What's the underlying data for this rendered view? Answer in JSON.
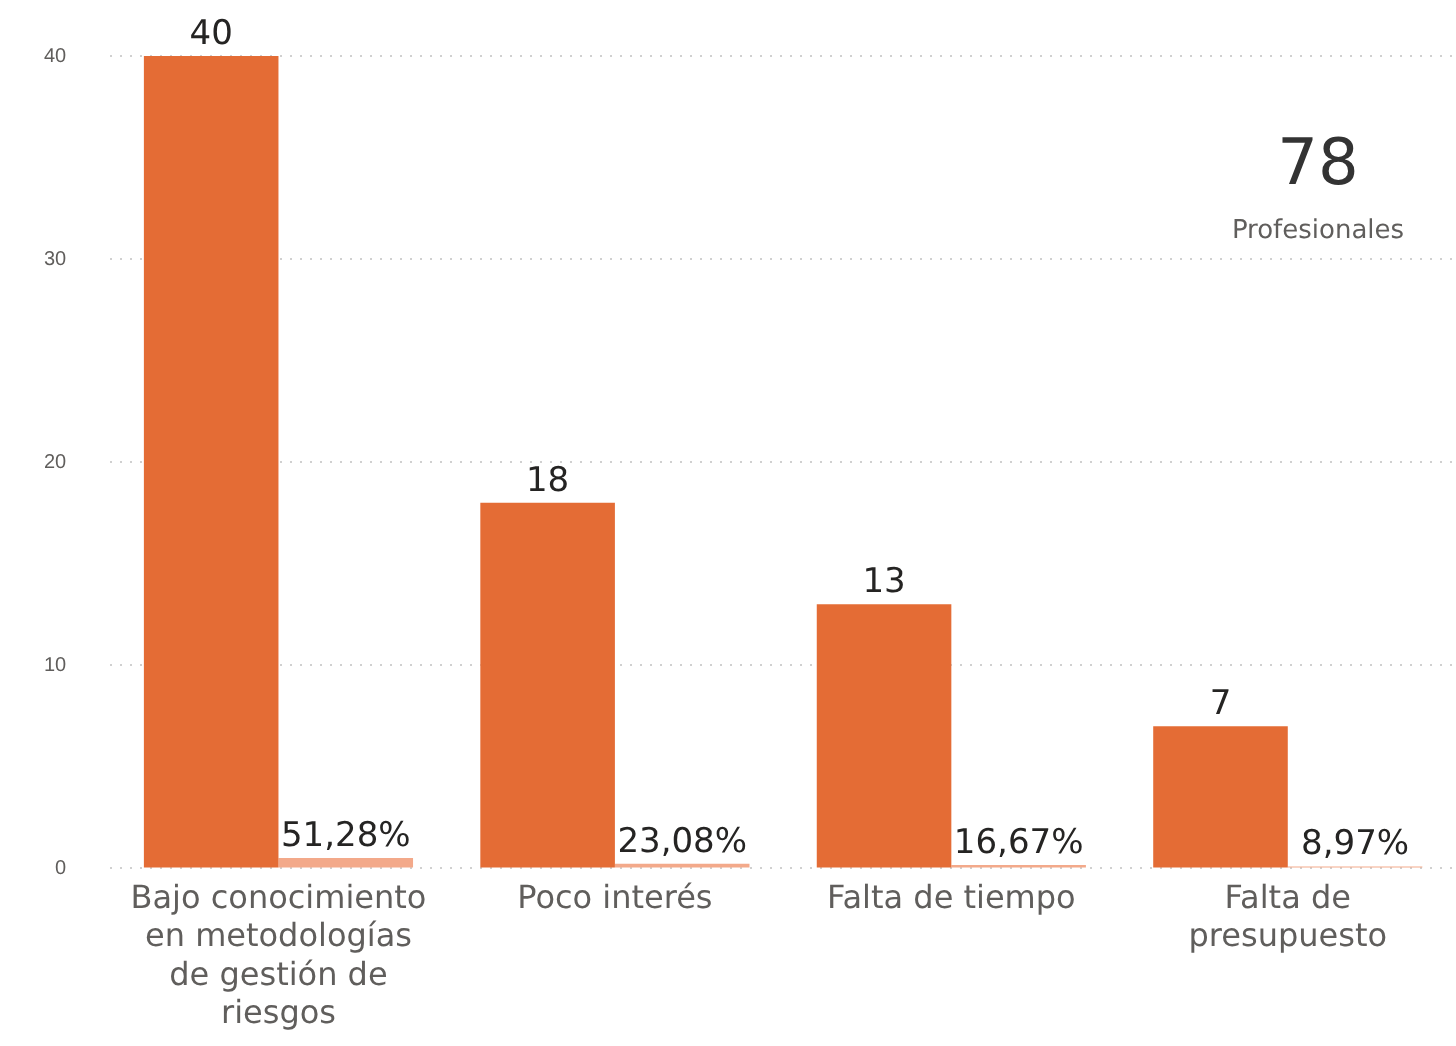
{
  "chart_data": {
    "type": "bar",
    "categories": [
      "Bajo conocimiento en metodologías de gestión de riesgos",
      "Poco interés",
      "Falta de tiempo",
      "Falta de presupuesto"
    ],
    "series": [
      {
        "color": "#e46c35",
        "values": [
          40,
          18,
          13,
          7
        ],
        "value_labels": [
          "40",
          "18",
          "13",
          "7"
        ]
      },
      {
        "color": "#f3a98a",
        "values": [
          0.5128,
          0.2308,
          0.1667,
          0.0897
        ],
        "value_labels": [
          "51,28%",
          "23,08%",
          "16,67%",
          "8,97%"
        ]
      }
    ],
    "ylim": [
      0,
      40
    ],
    "yticks": [
      0,
      10,
      20,
      30,
      40
    ],
    "grid": "y",
    "legend": false,
    "annotations": [
      "78",
      "Profesionales"
    ]
  }
}
